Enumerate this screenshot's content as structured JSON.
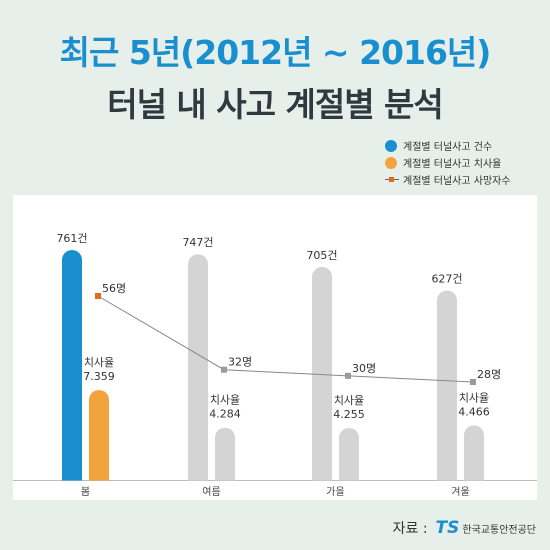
{
  "title_line1": "최근 5년(2012년 ~ 2016년)",
  "title_line2": "터널 내 사고 계절별 분석",
  "legend": [
    {
      "label": "계절별 터널사고 건수",
      "color": "#1a8fd0",
      "shape": "circle"
    },
    {
      "label": "계절별 터널사고 치사율",
      "color": "#f3a33b",
      "shape": "circle"
    },
    {
      "label": "계절별 터널사고 사망자수",
      "color": "#e06b1a",
      "shape": "line-square"
    }
  ],
  "source_label": "자료 :",
  "source_logo": "TS",
  "source_org": "한국교통안전공단",
  "fatality_rate_label": "치사율",
  "colors": {
    "accidents": "#1a8fd0",
    "fatality_rate": "#f3a33b",
    "deaths_line": "#888888",
    "deaths_marker": "#e06b1a",
    "inactive_bar": "#d4d4d4"
  },
  "chart_data": {
    "type": "bar",
    "categories": [
      "봄",
      "여름",
      "가을",
      "겨울"
    ],
    "series": [
      {
        "name": "계절별 터널사고 건수",
        "values": [
          761,
          747,
          705,
          627
        ],
        "labels": [
          "761건",
          "747건",
          "705건",
          "627건"
        ]
      },
      {
        "name": "계절별 터널사고 치사율",
        "values": [
          7.359,
          4.284,
          4.255,
          4.466
        ],
        "labels": [
          "7.359",
          "4.284",
          "4.255",
          "4.466"
        ]
      },
      {
        "name": "계절별 터널사고 사망자수",
        "type": "line",
        "values": [
          56,
          32,
          30,
          28
        ],
        "labels": [
          "56명",
          "32명",
          "30명",
          "28명"
        ]
      }
    ],
    "highlight_category": "봄",
    "legend_position": "top-right",
    "grid": false
  }
}
